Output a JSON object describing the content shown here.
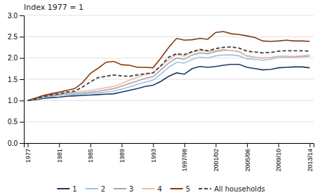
{
  "chart_data": {
    "type": "line",
    "title": "Index 1977 = 1",
    "categories": [
      "1977",
      null,
      null,
      null,
      "1981",
      null,
      null,
      null,
      "1985",
      null,
      null,
      null,
      "1989",
      null,
      null,
      null,
      "1993",
      null,
      null,
      null,
      "1997/98",
      null,
      null,
      null,
      "2001/02",
      null,
      null,
      null,
      "2005/06",
      null,
      null,
      null,
      "2009/10",
      null,
      null,
      null,
      "2013/14"
    ],
    "series": [
      {
        "name": "1",
        "color": "#1f3864",
        "line_style": "solid",
        "values": [
          1.0,
          1.02,
          1.05,
          1.07,
          1.08,
          1.1,
          1.11,
          1.12,
          1.13,
          1.14,
          1.15,
          1.16,
          1.2,
          1.24,
          1.28,
          1.33,
          1.36,
          1.45,
          1.57,
          1.65,
          1.62,
          1.75,
          1.8,
          1.78,
          1.8,
          1.83,
          1.85,
          1.85,
          1.78,
          1.75,
          1.72,
          1.73,
          1.77,
          1.78,
          1.79,
          1.79,
          1.77
        ]
      },
      {
        "name": "2",
        "color": "#9dc3e6",
        "line_style": "solid",
        "values": [
          1.0,
          1.03,
          1.07,
          1.1,
          1.12,
          1.14,
          1.14,
          1.15,
          1.17,
          1.18,
          1.2,
          1.22,
          1.27,
          1.32,
          1.38,
          1.43,
          1.48,
          1.62,
          1.78,
          1.9,
          1.88,
          1.97,
          2.02,
          2.0,
          2.05,
          2.07,
          2.07,
          2.05,
          1.98,
          1.97,
          1.95,
          1.97,
          2.01,
          2.02,
          2.02,
          2.03,
          2.04
        ]
      },
      {
        "name": "3",
        "color": "#a6a6a6",
        "line_style": "solid",
        "values": [
          1.0,
          1.04,
          1.09,
          1.12,
          1.14,
          1.17,
          1.17,
          1.18,
          1.2,
          1.22,
          1.25,
          1.28,
          1.34,
          1.4,
          1.46,
          1.52,
          1.56,
          1.72,
          1.88,
          2.0,
          1.97,
          2.07,
          2.12,
          2.1,
          2.15,
          2.18,
          2.18,
          2.15,
          2.05,
          2.02,
          2.0,
          2.01,
          2.04,
          2.04,
          2.03,
          2.04,
          2.04
        ]
      },
      {
        "name": "4",
        "color": "#f4b8b0",
        "line_style": "solid",
        "values": [
          1.0,
          1.05,
          1.1,
          1.14,
          1.17,
          1.2,
          1.2,
          1.22,
          1.24,
          1.27,
          1.3,
          1.33,
          1.4,
          1.48,
          1.55,
          1.61,
          1.65,
          1.8,
          1.96,
          2.08,
          2.04,
          2.13,
          2.18,
          2.15,
          2.18,
          2.2,
          2.18,
          2.14,
          2.04,
          2.02,
          2.0,
          2.01,
          2.04,
          2.04,
          2.04,
          2.05,
          2.07
        ]
      },
      {
        "name": "5",
        "color": "#843c0c",
        "line_style": "solid",
        "values": [
          1.0,
          1.06,
          1.12,
          1.16,
          1.2,
          1.24,
          1.28,
          1.42,
          1.64,
          1.76,
          1.9,
          1.92,
          1.84,
          1.83,
          1.78,
          1.78,
          1.77,
          2.0,
          2.25,
          2.46,
          2.42,
          2.43,
          2.46,
          2.44,
          2.6,
          2.62,
          2.57,
          2.55,
          2.52,
          2.48,
          2.4,
          2.39,
          2.4,
          2.42,
          2.4,
          2.4,
          2.39
        ]
      },
      {
        "name": "All households",
        "color": "#404040",
        "line_style": "dashed",
        "values": [
          1.0,
          1.04,
          1.09,
          1.13,
          1.16,
          1.2,
          1.22,
          1.32,
          1.44,
          1.54,
          1.57,
          1.6,
          1.58,
          1.57,
          1.6,
          1.63,
          1.65,
          1.82,
          2.02,
          2.1,
          2.08,
          2.15,
          2.2,
          2.17,
          2.22,
          2.25,
          2.26,
          2.23,
          2.16,
          2.14,
          2.12,
          2.13,
          2.16,
          2.17,
          2.17,
          2.17,
          2.16
        ]
      }
    ],
    "ylim": [
      0.0,
      3.0
    ],
    "yticks": [
      {
        "value": 0.0,
        "label": "0.0"
      },
      0.5,
      {
        "value": 1.0,
        "label": "1.0"
      },
      1.5,
      {
        "value": 2.0,
        "label": "2.0"
      },
      2.5,
      {
        "value": 3.0,
        "label": "3.0"
      }
    ],
    "grid": true,
    "legend": "bottom"
  }
}
